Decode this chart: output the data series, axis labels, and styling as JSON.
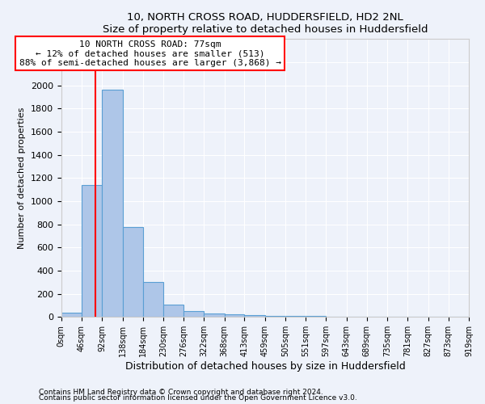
{
  "title1": "10, NORTH CROSS ROAD, HUDDERSFIELD, HD2 2NL",
  "title2": "Size of property relative to detached houses in Huddersfield",
  "xlabel": "Distribution of detached houses by size in Huddersfield",
  "ylabel": "Number of detached properties",
  "bin_edges": [
    0,
    46,
    92,
    138,
    184,
    230,
    276,
    322,
    368,
    413,
    459,
    505,
    551,
    597,
    643,
    689,
    735,
    781,
    827,
    873,
    919
  ],
  "bar_heights": [
    35,
    1140,
    1960,
    775,
    300,
    105,
    50,
    30,
    20,
    15,
    10,
    8,
    6,
    5,
    4,
    3,
    3,
    2,
    2,
    2
  ],
  "bar_color": "#aec6e8",
  "bar_edge_color": "#5a9fd4",
  "property_size": 77,
  "annotation_line1": "10 NORTH CROSS ROAD: 77sqm",
  "annotation_line2": "← 12% of detached houses are smaller (513)",
  "annotation_line3": "88% of semi-detached houses are larger (3,868) →",
  "annotation_box_color": "white",
  "annotation_box_edge_color": "red",
  "vline_color": "red",
  "vline_x": 77,
  "ylim": [
    0,
    2400
  ],
  "tick_labels": [
    "0sqm",
    "46sqm",
    "92sqm",
    "138sqm",
    "184sqm",
    "230sqm",
    "276sqm",
    "322sqm",
    "368sqm",
    "413sqm",
    "459sqm",
    "505sqm",
    "551sqm",
    "597sqm",
    "643sqm",
    "689sqm",
    "735sqm",
    "781sqm",
    "827sqm",
    "873sqm",
    "919sqm"
  ],
  "footnote1": "Contains HM Land Registry data © Crown copyright and database right 2024.",
  "footnote2": "Contains public sector information licensed under the Open Government Licence v3.0.",
  "bg_color": "#eef2fa",
  "grid_color": "white",
  "annotation_fontsize": 8.0,
  "title_fontsize": 9.5,
  "xlabel_fontsize": 9.0,
  "ylabel_fontsize": 8.0,
  "ytick_fontsize": 8.0,
  "xtick_fontsize": 7.0
}
